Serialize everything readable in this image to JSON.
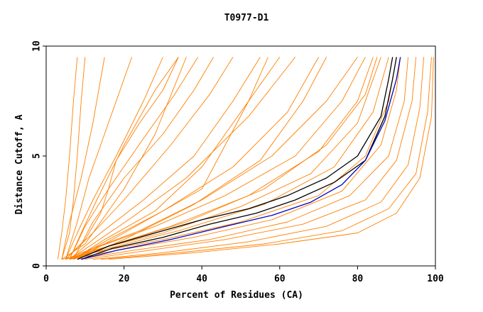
{
  "chart_data": {
    "type": "line",
    "title": "T0977-D1",
    "xlabel": "Percent of Residues (CA)",
    "ylabel": "Distance Cutoff, A",
    "xlim": [
      0,
      100
    ],
    "ylim": [
      0,
      10
    ],
    "x_ticks": [
      "0",
      "20",
      "40",
      "60",
      "80",
      "100"
    ],
    "y_ticks": [
      "0",
      "5",
      "10"
    ],
    "grid": false,
    "legend": "none",
    "colors": {
      "orange": "#ff8000",
      "black": "#000000",
      "blue": "#0000c0"
    },
    "series": [
      {
        "color": "orange",
        "points": [
          [
            3,
            0.3
          ],
          [
            4,
            1.5
          ],
          [
            5,
            3
          ],
          [
            6,
            5
          ],
          [
            7,
            7.5
          ],
          [
            8,
            9.5
          ]
        ]
      },
      {
        "color": "orange",
        "points": [
          [
            4,
            0.3
          ],
          [
            6,
            1.5
          ],
          [
            7,
            3
          ],
          [
            8,
            5
          ],
          [
            9,
            7.5
          ],
          [
            10,
            9.5
          ]
        ]
      },
      {
        "color": "orange",
        "points": [
          [
            4,
            0.3
          ],
          [
            6,
            2
          ],
          [
            9,
            4
          ],
          [
            12,
            6.5
          ],
          [
            14,
            8.5
          ],
          [
            15,
            9.5
          ]
        ]
      },
      {
        "color": "orange",
        "points": [
          [
            5,
            0.3
          ],
          [
            8,
            2
          ],
          [
            11,
            4
          ],
          [
            15,
            6
          ],
          [
            19,
            8
          ],
          [
            22,
            9.5
          ]
        ]
      },
      {
        "color": "orange",
        "points": [
          [
            5,
            0.3
          ],
          [
            8,
            1.5
          ],
          [
            12,
            3
          ],
          [
            18,
            5
          ],
          [
            25,
            7.5
          ],
          [
            30,
            9.5
          ]
        ]
      },
      {
        "color": "orange",
        "points": [
          [
            6,
            0.3
          ],
          [
            9,
            1.5
          ],
          [
            13,
            3
          ],
          [
            20,
            5.5
          ],
          [
            28,
            8
          ],
          [
            34,
            9.5
          ]
        ]
      },
      {
        "color": "orange",
        "points": [
          [
            6,
            0.3
          ],
          [
            10,
            1.8
          ],
          [
            16,
            3.5
          ],
          [
            25,
            5.8
          ],
          [
            33,
            7.8
          ],
          [
            39,
            9.5
          ]
        ]
      },
      {
        "color": "orange",
        "points": [
          [
            7,
            0.3
          ],
          [
            12,
            2
          ],
          [
            20,
            4
          ],
          [
            30,
            6
          ],
          [
            38,
            8
          ],
          [
            43,
            9.5
          ]
        ]
      },
      {
        "color": "orange",
        "points": [
          [
            4,
            0.3
          ],
          [
            10,
            1
          ],
          [
            14,
            2
          ],
          [
            20,
            3.5
          ],
          [
            28,
            6
          ],
          [
            36,
            9.5
          ]
        ]
      },
      {
        "color": "orange",
        "points": [
          [
            5,
            0.3
          ],
          [
            12,
            1.5
          ],
          [
            20,
            3
          ],
          [
            32,
            5.5
          ],
          [
            42,
            7.8
          ],
          [
            48,
            9.5
          ]
        ]
      },
      {
        "color": "orange",
        "points": [
          [
            6,
            0.3
          ],
          [
            14,
            1.5
          ],
          [
            25,
            3
          ],
          [
            38,
            5
          ],
          [
            48,
            7.5
          ],
          [
            55,
            9.5
          ]
        ]
      },
      {
        "color": "orange",
        "points": [
          [
            7,
            0.3
          ],
          [
            15,
            1.2
          ],
          [
            28,
            2.5
          ],
          [
            40,
            4.5
          ],
          [
            52,
            7.5
          ],
          [
            60,
            9.5
          ]
        ]
      },
      {
        "color": "orange",
        "points": [
          [
            6,
            0.3
          ],
          [
            12,
            1
          ],
          [
            22,
            2.2
          ],
          [
            36,
            4
          ],
          [
            52,
            6.8
          ],
          [
            64,
            9.5
          ]
        ]
      },
      {
        "color": "orange",
        "points": [
          [
            7,
            0.3
          ],
          [
            16,
            1.2
          ],
          [
            30,
            2.5
          ],
          [
            48,
            4.5
          ],
          [
            62,
            7
          ],
          [
            70,
            9.5
          ]
        ]
      },
      {
        "color": "orange",
        "points": [
          [
            8,
            0.3
          ],
          [
            20,
            1.2
          ],
          [
            38,
            2.8
          ],
          [
            55,
            4.8
          ],
          [
            66,
            7.5
          ],
          [
            72,
            9.5
          ]
        ]
      },
      {
        "color": "orange",
        "points": [
          [
            5,
            0.3
          ],
          [
            12,
            0.8
          ],
          [
            24,
            1.6
          ],
          [
            40,
            3
          ],
          [
            58,
            5
          ],
          [
            72,
            7.5
          ],
          [
            80,
            9.5
          ]
        ]
      },
      {
        "color": "orange",
        "points": [
          [
            6,
            0.3
          ],
          [
            14,
            0.9
          ],
          [
            28,
            1.8
          ],
          [
            46,
            3.2
          ],
          [
            64,
            5
          ],
          [
            76,
            7.5
          ],
          [
            82,
            9.5
          ]
        ]
      },
      {
        "color": "orange",
        "points": [
          [
            6,
            0.3
          ],
          [
            16,
            0.9
          ],
          [
            32,
            1.8
          ],
          [
            52,
            3.2
          ],
          [
            70,
            5.2
          ],
          [
            80,
            7.5
          ],
          [
            84,
            9.5
          ]
        ]
      },
      {
        "color": "orange",
        "points": [
          [
            7,
            0.3
          ],
          [
            18,
            1
          ],
          [
            36,
            2
          ],
          [
            56,
            3.5
          ],
          [
            72,
            5.5
          ],
          [
            82,
            7.8
          ],
          [
            85,
            9.5
          ]
        ]
      },
      {
        "color": "orange",
        "points": [
          [
            5,
            0.3
          ],
          [
            14,
            0.8
          ],
          [
            30,
            1.5
          ],
          [
            50,
            2.7
          ],
          [
            68,
            4.2
          ],
          [
            80,
            6.5
          ],
          [
            86,
            9.5
          ]
        ]
      },
      {
        "color": "orange",
        "points": [
          [
            6,
            0.3
          ],
          [
            16,
            0.8
          ],
          [
            34,
            1.6
          ],
          [
            56,
            2.8
          ],
          [
            74,
            4.5
          ],
          [
            84,
            7
          ],
          [
            88,
            9.5
          ]
        ]
      },
      {
        "color": "orange",
        "points": [
          [
            4,
            0.3
          ],
          [
            12,
            0.6
          ],
          [
            30,
            1.2
          ],
          [
            50,
            2
          ],
          [
            70,
            3.2
          ],
          [
            82,
            5
          ],
          [
            88,
            7.5
          ],
          [
            90,
            9.5
          ]
        ]
      },
      {
        "color": "orange",
        "points": [
          [
            6,
            0.3
          ],
          [
            18,
            0.7
          ],
          [
            38,
            1.3
          ],
          [
            58,
            2.1
          ],
          [
            76,
            3.4
          ],
          [
            86,
            5.5
          ],
          [
            90,
            8
          ],
          [
            91,
            9.5
          ]
        ]
      },
      {
        "color": "orange",
        "points": [
          [
            8,
            0.3
          ],
          [
            22,
            0.7
          ],
          [
            42,
            1.2
          ],
          [
            62,
            2
          ],
          [
            78,
            3.2
          ],
          [
            88,
            5
          ],
          [
            92,
            7.5
          ],
          [
            93,
            9.5
          ]
        ]
      },
      {
        "color": "orange",
        "points": [
          [
            10,
            0.3
          ],
          [
            26,
            0.7
          ],
          [
            46,
            1.2
          ],
          [
            66,
            1.9
          ],
          [
            82,
            3
          ],
          [
            90,
            4.8
          ],
          [
            94,
            7.5
          ],
          [
            95,
            9.5
          ]
        ]
      },
      {
        "color": "orange",
        "points": [
          [
            12,
            0.3
          ],
          [
            30,
            0.6
          ],
          [
            52,
            1.1
          ],
          [
            72,
            1.8
          ],
          [
            86,
            2.9
          ],
          [
            93,
            4.6
          ],
          [
            96,
            7.2
          ],
          [
            97,
            9.5
          ]
        ]
      },
      {
        "color": "orange",
        "points": [
          [
            14,
            0.3
          ],
          [
            34,
            0.6
          ],
          [
            56,
            1
          ],
          [
            76,
            1.6
          ],
          [
            88,
            2.6
          ],
          [
            95,
            4.2
          ],
          [
            98,
            7
          ],
          [
            99,
            9.5
          ]
        ]
      },
      {
        "color": "orange",
        "points": [
          [
            16,
            0.3
          ],
          [
            38,
            0.6
          ],
          [
            60,
            1
          ],
          [
            80,
            1.5
          ],
          [
            90,
            2.4
          ],
          [
            96,
            4
          ],
          [
            99,
            6.8
          ],
          [
            99.5,
            9.5
          ]
        ]
      },
      {
        "color": "orange",
        "points": [
          [
            5,
            0.3
          ],
          [
            10,
            1.2
          ],
          [
            14,
            2.4
          ],
          [
            16,
            3.5
          ],
          [
            18,
            4.8
          ],
          [
            24,
            6.5
          ],
          [
            30,
            8
          ],
          [
            34,
            9.5
          ]
        ]
      },
      {
        "color": "orange",
        "points": [
          [
            8,
            0.3
          ],
          [
            20,
            1.5
          ],
          [
            30,
            2.5
          ],
          [
            40,
            3.5
          ],
          [
            46,
            5.5
          ],
          [
            52,
            7.5
          ],
          [
            57,
            9.5
          ]
        ]
      },
      {
        "color": "black",
        "points": [
          [
            8,
            0.3
          ],
          [
            16,
            0.9
          ],
          [
            28,
            1.5
          ],
          [
            40,
            2.1
          ],
          [
            52,
            2.6
          ],
          [
            62,
            3.2
          ],
          [
            72,
            4
          ],
          [
            80,
            5
          ],
          [
            86,
            6.8
          ],
          [
            88,
            8.5
          ],
          [
            89,
            9.5
          ]
        ]
      },
      {
        "color": "black",
        "points": [
          [
            9,
            0.3
          ],
          [
            17,
            0.8
          ],
          [
            30,
            1.3
          ],
          [
            42,
            1.9
          ],
          [
            54,
            2.4
          ],
          [
            64,
            3
          ],
          [
            74,
            3.8
          ],
          [
            82,
            4.8
          ],
          [
            87,
            6.8
          ],
          [
            89,
            8.5
          ],
          [
            90,
            9.5
          ]
        ]
      },
      {
        "color": "blue",
        "points": [
          [
            9,
            0.3
          ],
          [
            18,
            0.7
          ],
          [
            32,
            1.2
          ],
          [
            46,
            1.8
          ],
          [
            58,
            2.3
          ],
          [
            68,
            2.9
          ],
          [
            76,
            3.7
          ],
          [
            82,
            4.8
          ],
          [
            87,
            6.6
          ],
          [
            90,
            8.5
          ],
          [
            91,
            9.5
          ]
        ]
      }
    ]
  }
}
